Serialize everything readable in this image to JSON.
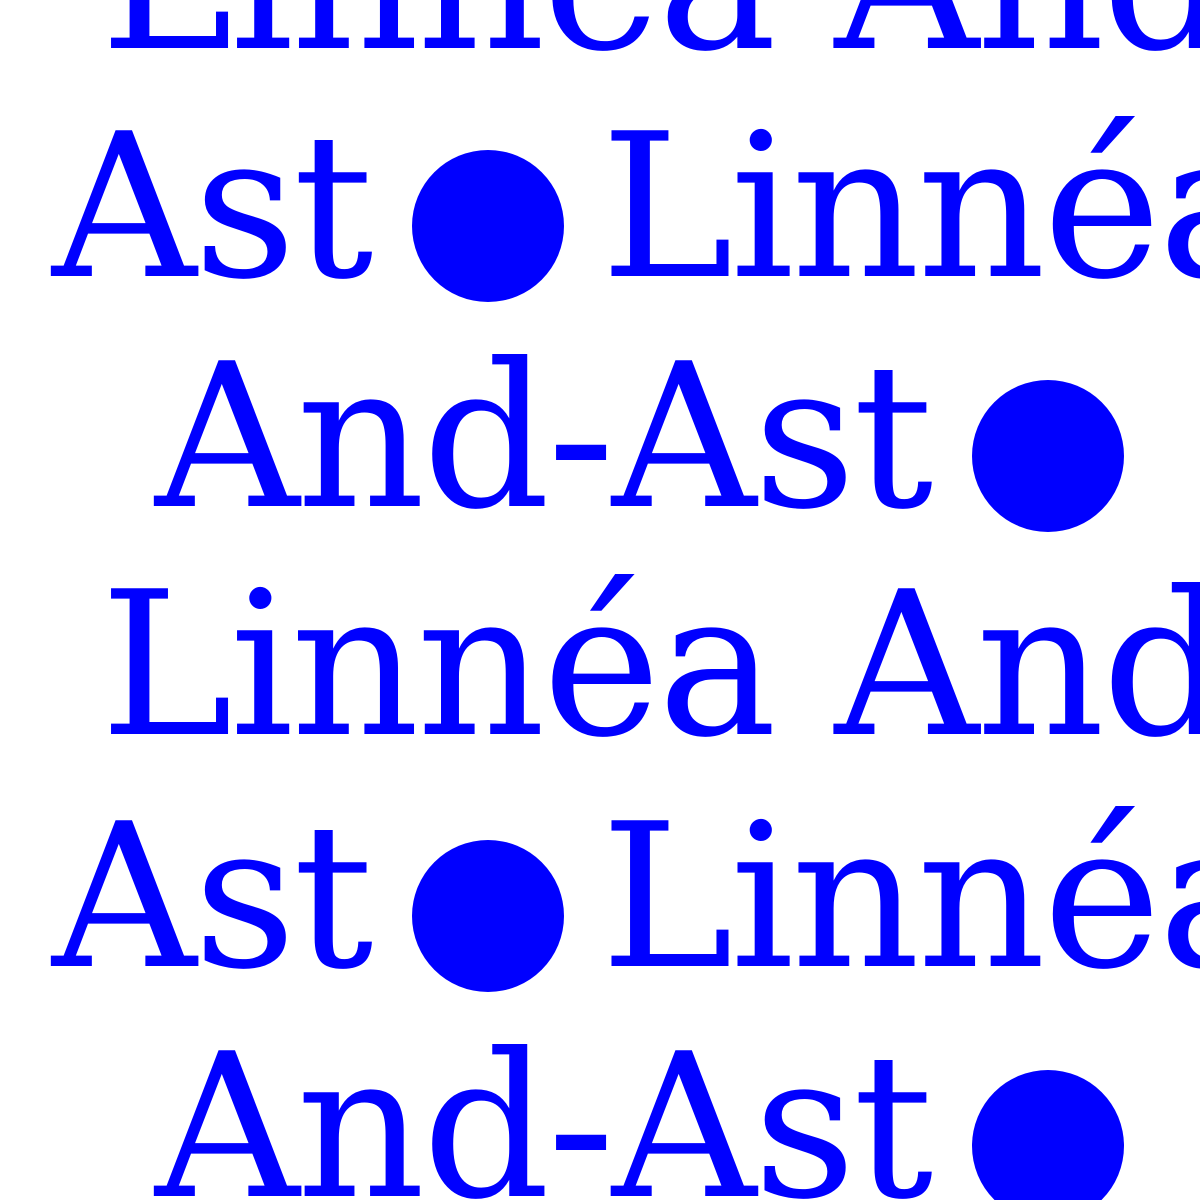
{
  "palette": {
    "ink": "#0000ff",
    "paper": "#ffffff"
  },
  "rows": [
    {
      "a": "Linnéa And-"
    },
    {
      "a": "Ast",
      "b": "Linnéa"
    },
    {
      "a": "And-Ast"
    },
    {
      "a": "Linnéa And-"
    },
    {
      "a": "Ast",
      "b": "Linnéa"
    },
    {
      "a": "And-Ast"
    }
  ]
}
